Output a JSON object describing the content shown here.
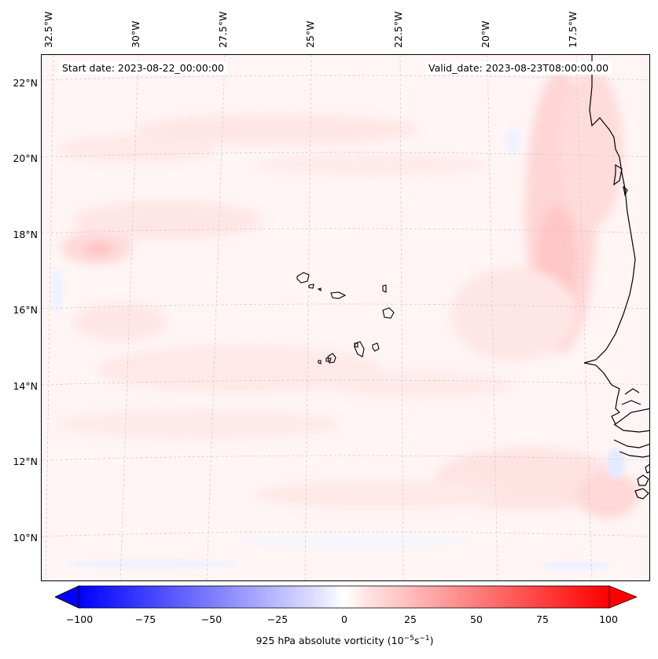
{
  "map": {
    "lon_labels": [
      "32.5°W",
      "30°W",
      "27.5°W",
      "25°W",
      "22.5°W",
      "20°W",
      "17.5°W"
    ],
    "lat_labels": [
      "22°N",
      "20°N",
      "18°N",
      "16°N",
      "14°N",
      "12°N",
      "10°N"
    ],
    "start_date": "Start date: 2023-08-22_00:00:00",
    "valid_date": "Valid_date: 2023-08-23T08:00:00.00",
    "variable": "925 hPa absolute vorticity",
    "colormap": [
      "#0000ff",
      "#ffffff",
      "#ff0000"
    ]
  },
  "colorbar": {
    "ticks": [
      "−100",
      "−75",
      "−50",
      "−25",
      "0",
      "25",
      "50",
      "75",
      "100"
    ],
    "title_prefix": "925 hPa absolute vorticity (10",
    "title_exp1": "−5",
    "title_mid": "s",
    "title_exp2": "−1",
    "title_suffix": ")"
  }
}
